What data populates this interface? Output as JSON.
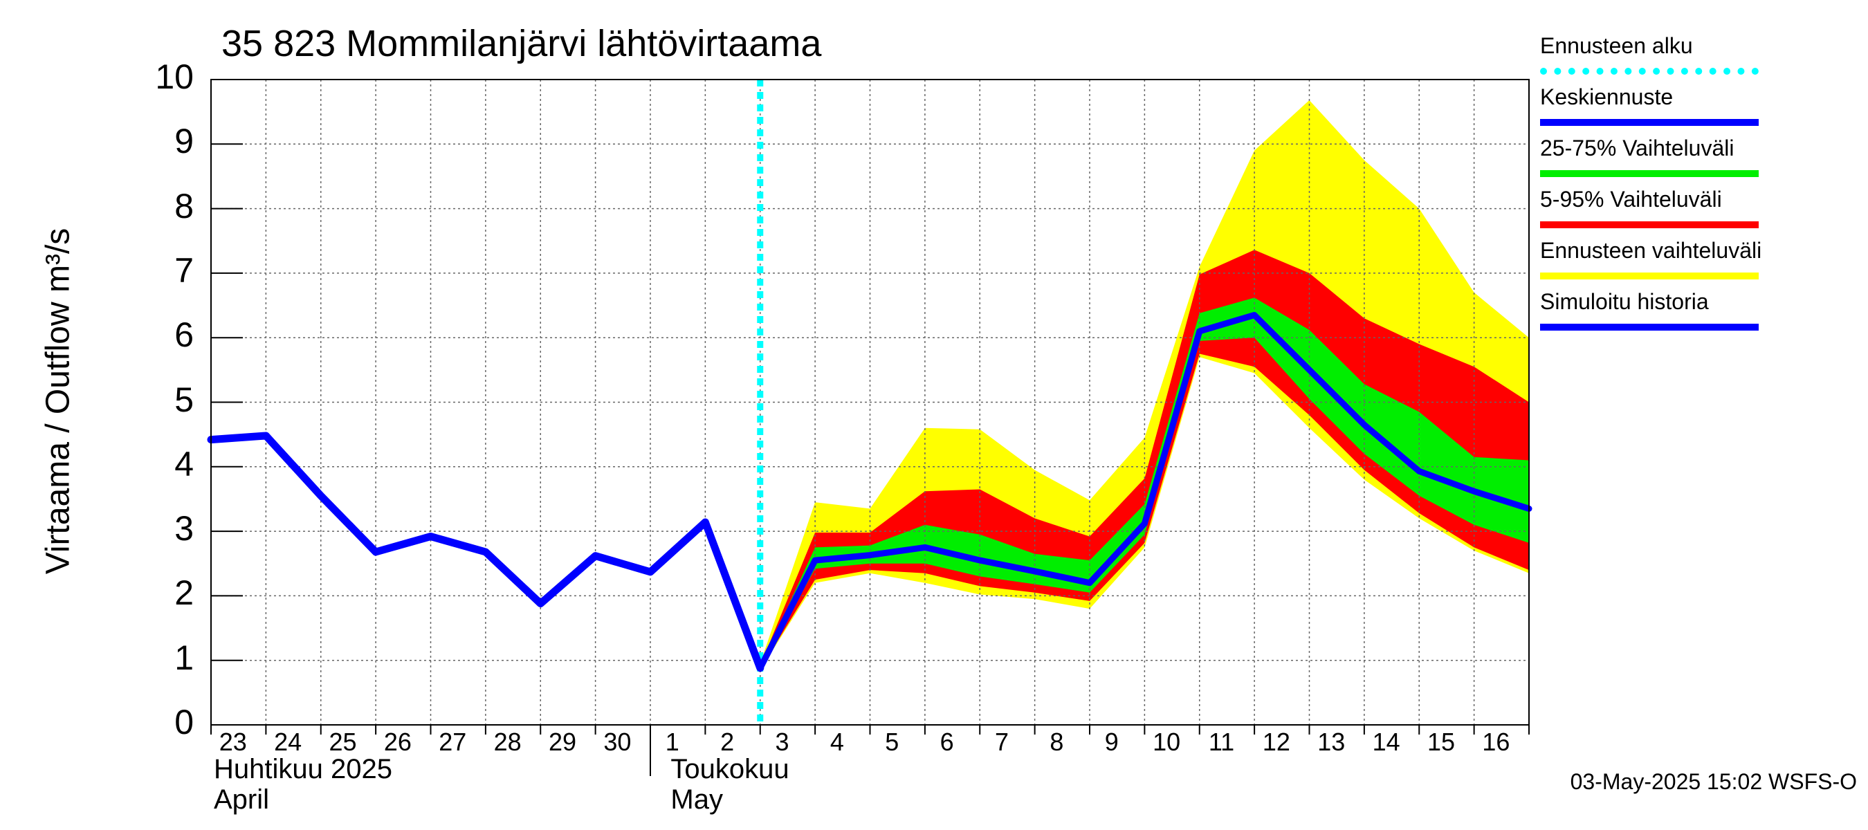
{
  "title": "35 823 Mommilanjärvi lähtövirtaama",
  "footer": "03-May-2025 15:02 WSFS-O",
  "colors": {
    "history": "#0000ff",
    "mean": "#0000ff",
    "band_25_75": "#00ee00",
    "band_5_95": "#ff0000",
    "band_total": "#ffff00",
    "forecast_start": "#00ffff",
    "grid": "#666666"
  },
  "legend": [
    {
      "label": "Ennusteen alku",
      "color": "#00ffff",
      "style": "dotted"
    },
    {
      "label": "Keskiennuste",
      "color": "#0000ff",
      "style": "solid"
    },
    {
      "label": "25-75% Vaihteluväli",
      "color": "#00ee00",
      "style": "solid"
    },
    {
      "label": "5-95% Vaihteluväli",
      "color": "#ff0000",
      "style": "solid"
    },
    {
      "label": "Ennusteen vaihteluväli",
      "color": "#ffff00",
      "style": "solid"
    },
    {
      "label": "Simuloitu historia",
      "color": "#0000ff",
      "style": "solid"
    }
  ],
  "chart_data": {
    "type": "area",
    "ylabel": "Virtaama / Outflow    m³/s",
    "ylim": [
      0,
      10
    ],
    "yticks": [
      0,
      1,
      2,
      3,
      4,
      5,
      6,
      7,
      8,
      9,
      10
    ],
    "grid": true,
    "legend_position": "right",
    "x_tick_labels": [
      "23",
      "24",
      "25",
      "26",
      "27",
      "28",
      "29",
      "30",
      "1",
      "2",
      "3",
      "4",
      "5",
      "6",
      "7",
      "8",
      "9",
      "10",
      "11",
      "12",
      "13",
      "14",
      "15",
      "16"
    ],
    "months": [
      {
        "fi": "Huhtikuu  2025",
        "en": "April"
      },
      {
        "fi": "Toukokuu",
        "en": "May"
      }
    ],
    "forecast_start": "3 May",
    "x_dates": [
      "23 Apr",
      "24 Apr",
      "25 Apr",
      "26 Apr",
      "27 Apr",
      "28 Apr",
      "29 Apr",
      "30 Apr",
      "1 May",
      "2 May",
      "3 May",
      "4 May",
      "5 May",
      "6 May",
      "7 May",
      "8 May",
      "9 May",
      "10 May",
      "11 May",
      "12 May",
      "13 May",
      "14 May",
      "15 May",
      "16 May",
      "17 May"
    ],
    "series": [
      {
        "name": "Simuloitu historia",
        "x": [
          "23 Apr",
          "24 Apr",
          "25 Apr",
          "26 Apr",
          "27 Apr",
          "28 Apr",
          "29 Apr",
          "30 Apr",
          "1 May",
          "2 May",
          "3 May"
        ],
        "values": [
          4.42,
          4.48,
          3.55,
          2.68,
          2.92,
          2.68,
          1.88,
          2.62,
          2.37,
          3.14,
          0.88
        ]
      },
      {
        "name": "Keskiennuste",
        "x": [
          "3 May",
          "4 May",
          "5 May",
          "6 May",
          "7 May",
          "8 May",
          "9 May",
          "10 May",
          "11 May",
          "12 May",
          "13 May",
          "14 May",
          "15 May",
          "16 May",
          "17 May"
        ],
        "values": [
          0.88,
          2.55,
          2.63,
          2.75,
          2.55,
          2.38,
          2.2,
          3.12,
          6.1,
          6.35,
          5.5,
          4.65,
          3.93,
          3.62,
          3.35
        ]
      }
    ],
    "bands": [
      {
        "name": "Ennusteen vaihteluväli",
        "x": [
          "3 May",
          "4 May",
          "5 May",
          "6 May",
          "7 May",
          "8 May",
          "9 May",
          "10 May",
          "11 May",
          "12 May",
          "13 May",
          "14 May",
          "15 May",
          "16 May",
          "17 May"
        ],
        "low": [
          0.85,
          2.2,
          2.35,
          2.2,
          2.02,
          1.95,
          1.8,
          2.75,
          5.7,
          5.45,
          4.6,
          3.8,
          3.2,
          2.7,
          2.35
        ],
        "high": [
          0.95,
          3.45,
          3.35,
          4.6,
          4.58,
          3.95,
          3.48,
          4.45,
          7.1,
          8.9,
          9.68,
          8.75,
          8.0,
          6.7,
          6.0
        ]
      },
      {
        "name": "5-95% Vaihteluväli",
        "x": [
          "3 May",
          "4 May",
          "5 May",
          "6 May",
          "7 May",
          "8 May",
          "9 May",
          "10 May",
          "11 May",
          "12 May",
          "13 May",
          "14 May",
          "15 May",
          "16 May",
          "17 May"
        ],
        "low": [
          0.86,
          2.25,
          2.4,
          2.35,
          2.15,
          2.05,
          1.92,
          2.82,
          5.75,
          5.55,
          4.8,
          3.95,
          3.28,
          2.75,
          2.4
        ],
        "high": [
          0.92,
          2.98,
          2.98,
          3.62,
          3.65,
          3.2,
          2.92,
          3.82,
          6.98,
          7.36,
          7.0,
          6.3,
          5.9,
          5.55,
          5.0
        ]
      },
      {
        "name": "25-75% Vaihteluväli",
        "x": [
          "3 May",
          "4 May",
          "5 May",
          "6 May",
          "7 May",
          "8 May",
          "9 May",
          "10 May",
          "11 May",
          "12 May",
          "13 May",
          "14 May",
          "15 May",
          "16 May",
          "17 May"
        ],
        "low": [
          0.87,
          2.42,
          2.5,
          2.5,
          2.3,
          2.18,
          2.05,
          2.95,
          5.95,
          6.0,
          5.05,
          4.2,
          3.55,
          3.1,
          2.82
        ],
        "high": [
          0.9,
          2.75,
          2.78,
          3.1,
          2.95,
          2.65,
          2.55,
          3.42,
          6.38,
          6.62,
          6.12,
          5.28,
          4.85,
          4.15,
          4.1
        ]
      }
    ]
  }
}
